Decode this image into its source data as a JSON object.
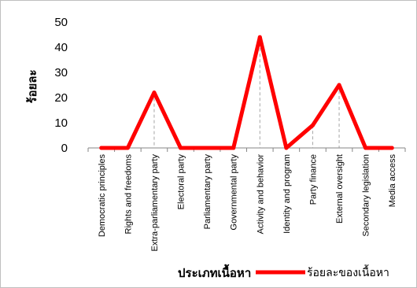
{
  "chart_data": {
    "type": "line",
    "title": "",
    "xlabel": "ประเภทเนื้อหา",
    "ylabel": "ร้อยละ",
    "ylim": [
      0,
      50
    ],
    "yticks": [
      0,
      10,
      20,
      30,
      40,
      50
    ],
    "grid": false,
    "legend_position": "bottom-right",
    "categories": [
      "Democratic principles",
      "Rights and freedoms",
      "Extra-parliamentary party",
      "Electoral party",
      "Parliamentary party",
      "Governmental party",
      "Activity and behavior",
      "Identity and program",
      "Party finance",
      "External oversight",
      "Secondary legislation",
      "Media access"
    ],
    "series": [
      {
        "name": "ร้อยละของเนื้อหา",
        "color": "#ff0000",
        "values": [
          0,
          0,
          22,
          0,
          0,
          0,
          44,
          0,
          9,
          25,
          0,
          0
        ]
      }
    ],
    "drop_line_color": "#a6a6a6"
  }
}
